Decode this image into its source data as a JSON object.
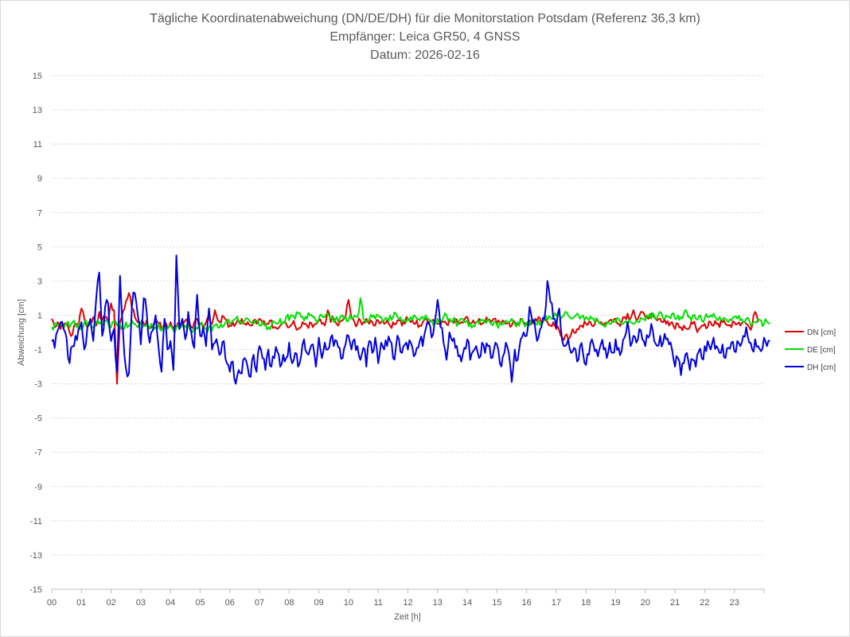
{
  "chart_data": {
    "type": "line",
    "title": [
      "Tägliche Koordinatenabweichung (DN/DE/DH) für die Monitorstation Potsdam (Referenz 36,3 km)",
      "Empfänger: Leica GR50, 4 GNSS",
      "Datum: 2026-02-16"
    ],
    "xlabel": "Zeit [h]",
    "ylabel": "Abweichung [cm]",
    "xlim": [
      0,
      24
    ],
    "ylim": [
      -15,
      15
    ],
    "x_ticks": [
      "00",
      "01",
      "02",
      "03",
      "04",
      "05",
      "06",
      "07",
      "08",
      "09",
      "10",
      "11",
      "12",
      "13",
      "14",
      "15",
      "16",
      "17",
      "18",
      "19",
      "20",
      "21",
      "22",
      "23"
    ],
    "y_ticks": [
      15,
      13,
      11,
      9,
      7,
      5,
      3,
      1,
      -1,
      -3,
      -5,
      -7,
      -9,
      -11,
      -13,
      -15
    ],
    "grid": "horizontal dotted",
    "legend_position": "right",
    "sample_interval_h": 0.1,
    "series": [
      {
        "name": "DN [cm]",
        "color": "#e00000",
        "values": [
          0.8,
          0.3,
          0.6,
          0.2,
          0.4,
          0.5,
          0.0,
          -0.1,
          0.5,
          0.3,
          1.4,
          0.8,
          0.3,
          0.6,
          0.9,
          0.4,
          1.2,
          0.7,
          0.9,
          0.5,
          1.7,
          1.3,
          -3.0,
          0.6,
          1.2,
          1.8,
          2.3,
          1.4,
          0.9,
          0.6,
          0.6,
          0.5,
          0.7,
          0.3,
          0.4,
          0.8,
          0.5,
          0.2,
          0.5,
          0.3,
          0.6,
          0.2,
          0.3,
          0.5,
          0.4,
          0.7,
          0.5,
          0.3,
          0.6,
          0.8,
          0.5,
          0.3,
          0.6,
          0.9,
          0.5,
          1.3,
          0.7,
          0.6,
          0.9,
          0.7,
          0.4,
          0.6,
          0.5,
          0.7,
          0.8,
          0.5,
          0.6,
          0.4,
          0.7,
          0.5,
          0.8,
          0.6,
          0.4,
          0.5,
          0.7,
          0.3,
          0.2,
          0.4,
          0.6,
          0.5,
          0.3,
          0.5,
          0.4,
          0.2,
          0.3,
          0.5,
          0.4,
          0.6,
          0.3,
          0.5,
          0.7,
          0.5,
          0.4,
          1.3,
          0.6,
          0.8,
          0.5,
          0.6,
          0.7,
          0.9,
          1.9,
          0.8,
          0.6,
          0.5,
          0.7,
          0.6,
          0.8,
          0.5,
          0.6,
          0.4,
          0.7,
          0.6,
          0.5,
          0.7,
          0.4,
          0.6,
          0.5,
          0.7,
          0.4,
          0.5,
          0.8,
          0.6,
          0.5,
          0.7,
          0.4,
          0.6,
          0.8,
          0.5,
          0.7,
          0.6,
          0.5,
          0.4,
          0.6,
          0.5,
          0.7,
          0.6,
          0.8,
          0.5,
          0.6,
          0.7,
          0.9,
          0.5,
          0.7,
          0.6,
          0.8,
          0.5,
          0.6,
          0.7,
          0.6,
          0.8,
          0.5,
          0.6,
          0.7,
          0.5,
          0.6,
          0.4,
          0.6,
          0.5,
          0.8,
          0.6,
          0.5,
          0.7,
          0.6,
          0.8,
          0.9,
          0.5,
          0.7,
          0.6,
          0.4,
          0.6,
          0.2,
          0.1,
          -0.3,
          -0.2,
          -0.4,
          -0.1,
          0.0,
          0.2,
          0.4,
          0.3,
          0.5,
          0.6,
          0.4,
          0.5,
          0.7,
          0.6,
          0.4,
          0.5,
          0.7,
          0.6,
          0.8,
          0.5,
          0.6,
          0.9,
          1.1,
          0.8,
          1.3,
          0.7,
          1.0,
          1.2,
          0.9,
          0.8,
          1.1,
          0.9,
          0.7,
          0.8,
          0.6,
          0.5,
          0.4,
          0.6,
          0.2,
          0.5,
          0.3,
          0.4,
          0.2,
          0.3,
          0.5,
          0.3,
          0.2,
          0.4,
          0.5,
          0.3,
          0.6,
          0.4,
          0.5,
          0.3,
          0.6,
          0.5,
          0.4,
          0.3,
          0.6,
          0.5,
          0.4,
          0.6,
          0.5,
          0.3,
          0.4,
          1.2,
          0.6
        ],
        "profile": "steady"
      },
      {
        "name": "DE [cm]",
        "color": "#00e000",
        "values": [
          0.3,
          0.5,
          0.4,
          0.6,
          0.2,
          0.5,
          0.3,
          0.6,
          0.4,
          0.5,
          0.2,
          0.6,
          0.4,
          0.5,
          0.3,
          0.6,
          0.5,
          0.4,
          0.7,
          0.5,
          0.3,
          0.6,
          0.4,
          0.5,
          0.2,
          0.6,
          0.4,
          0.7,
          0.5,
          0.3,
          0.6,
          0.4,
          0.5,
          0.2,
          0.4,
          0.3,
          0.5,
          0.1,
          0.3,
          0.2,
          0.4,
          0.1,
          0.3,
          0.2,
          0.5,
          0.3,
          0.4,
          0.1,
          0.3,
          0.2,
          0.5,
          0.4,
          0.2,
          0.3,
          0.1,
          0.4,
          0.3,
          0.5,
          0.4,
          0.6,
          0.5,
          0.7,
          0.8,
          0.6,
          0.5,
          0.7,
          0.8,
          0.6,
          0.5,
          0.7,
          0.4,
          0.6,
          0.5,
          0.3,
          0.4,
          0.6,
          0.5,
          0.8,
          0.6,
          0.9,
          0.7,
          1.0,
          0.8,
          1.1,
          0.9,
          0.7,
          0.8,
          1.0,
          0.9,
          0.7,
          0.8,
          1.0,
          0.9,
          1.1,
          0.8,
          0.6,
          0.9,
          0.8,
          1.0,
          0.9,
          0.7,
          0.8,
          1.0,
          0.9,
          2.0,
          0.8,
          0.6,
          0.7,
          0.9,
          0.8,
          1.0,
          0.9,
          0.7,
          0.8,
          1.0,
          0.9,
          1.1,
          0.8,
          0.6,
          0.7,
          0.8,
          0.9,
          1.0,
          0.8,
          0.7,
          0.9,
          1.0,
          0.8,
          0.7,
          0.6,
          0.8,
          0.7,
          0.9,
          1.0,
          0.8,
          0.6,
          0.7,
          0.5,
          0.8,
          0.6,
          0.7,
          0.5,
          0.4,
          0.6,
          0.5,
          0.7,
          0.6,
          0.8,
          0.5,
          0.6,
          0.4,
          0.6,
          0.5,
          0.7,
          0.6,
          0.8,
          0.5,
          0.6,
          0.7,
          0.5,
          0.6,
          0.4,
          0.6,
          0.5,
          0.7,
          0.6,
          0.8,
          0.7,
          0.9,
          0.8,
          1.0,
          1.1,
          0.9,
          1.2,
          1.0,
          0.8,
          0.9,
          1.1,
          0.8,
          1.0,
          0.9,
          0.7,
          0.8,
          0.6,
          0.7,
          0.5,
          0.4,
          0.6,
          0.5,
          0.7,
          0.6,
          0.8,
          0.5,
          0.6,
          0.4,
          0.6,
          0.5,
          0.7,
          0.6,
          0.8,
          0.7,
          0.9,
          0.8,
          1.0,
          0.9,
          1.2,
          0.8,
          1.0,
          0.9,
          1.1,
          0.8,
          1.0,
          0.9,
          1.1,
          1.2,
          0.9,
          1.0,
          0.8,
          0.9,
          0.7,
          0.8,
          0.9,
          1.0,
          1.1,
          0.8,
          0.9,
          0.7,
          0.8,
          0.6,
          0.7,
          0.9,
          0.8,
          0.7,
          0.6,
          0.8,
          0.7,
          0.5,
          0.6,
          0.8,
          0.7,
          0.5,
          0.6,
          0.5
        ],
        "profile": "steady"
      },
      {
        "name": "DH [cm]",
        "color": "#0000e0",
        "values": [
          -0.5,
          -0.9,
          0.1,
          0.6,
          0.2,
          -0.3,
          -1.8,
          -0.8,
          -0.2,
          0.2,
          0.6,
          -1.0,
          0.3,
          0.8,
          -0.5,
          2.0,
          3.5,
          -0.2,
          1.5,
          1.7,
          -0.5,
          0.2,
          -2.3,
          3.3,
          0.1,
          -2.1,
          -2.4,
          1.5,
          2.3,
          1.0,
          -0.7,
          2.0,
          1.2,
          -0.6,
          0.1,
          1.0,
          -0.9,
          -2.3,
          0.8,
          -1.0,
          -0.5,
          -2.2,
          4.5,
          0.2,
          0.8,
          -0.4,
          1.2,
          0.0,
          -0.9,
          2.2,
          -0.2,
          0.3,
          -0.8,
          1.4,
          -1.0,
          -0.6,
          -0.8,
          -1.2,
          -0.5,
          -1.8,
          -2.3,
          -1.7,
          -3.0,
          -2.2,
          -2.4,
          -1.5,
          -2.0,
          -2.6,
          -1.3,
          -2.3,
          -0.8,
          -1.5,
          -2.2,
          -1.0,
          -2.0,
          -1.5,
          -1.1,
          -2.0,
          -1.3,
          -1.5,
          -0.6,
          -1.8,
          -1.2,
          -2.0,
          -1.4,
          -0.4,
          -1.2,
          -1.0,
          -0.7,
          -2.0,
          -0.3,
          -1.5,
          -0.6,
          -1.0,
          -0.3,
          -0.8,
          -0.5,
          -0.9,
          -1.5,
          -0.7,
          -0.2,
          -1.0,
          -0.4,
          -0.8,
          -1.6,
          -0.9,
          -2.0,
          -0.5,
          -1.2,
          -0.3,
          -1.8,
          -0.6,
          -1.0,
          -0.8,
          -0.5,
          -1.5,
          -0.8,
          -0.4,
          -1.2,
          -0.7,
          -1.0,
          -0.6,
          -1.4,
          -0.9,
          -0.5,
          -0.8,
          0.2,
          0.6,
          -0.3,
          0.6,
          1.9,
          0.3,
          -0.6,
          -1.6,
          0.0,
          -0.5,
          -0.9,
          -1.4,
          -1.7,
          -0.9,
          -0.4,
          -1.6,
          -1.1,
          -0.8,
          -1.5,
          -0.6,
          -1.2,
          -0.8,
          -1.5,
          -1.0,
          -0.7,
          -1.8,
          -1.4,
          -0.6,
          -1.2,
          -2.9,
          -1.0,
          -1.6,
          -0.4,
          0.0,
          -0.2,
          1.5,
          0.6,
          0.1,
          -0.3,
          0.3,
          0.8,
          3.0,
          1.8,
          0.8,
          0.3,
          1.4,
          -0.5,
          -0.8,
          -0.4,
          -1.2,
          -0.9,
          -1.7,
          -0.8,
          -1.2,
          -1.9,
          -1.3,
          -0.4,
          -1.1,
          -1.4,
          -0.7,
          -1.0,
          -1.5,
          -0.6,
          -1.2,
          -0.4,
          -0.9,
          -1.1,
          -0.3,
          0.6,
          -0.8,
          -0.2,
          -0.6,
          0.2,
          -0.4,
          -0.8,
          -0.3,
          0.5,
          -0.5,
          -0.8,
          -0.2,
          -0.6,
          -0.4,
          -0.7,
          -1.0,
          -2.0,
          -1.5,
          -2.5,
          -1.8,
          -1.2,
          -2.2,
          -1.6,
          -2.0,
          -1.1,
          -1.5,
          -0.8,
          -0.5,
          -1.0,
          -0.3,
          -0.8,
          -1.2,
          -0.7,
          -1.5,
          -0.9,
          -0.6,
          -1.1,
          -0.5,
          -0.8,
          -0.2,
          0.3,
          -0.6,
          -1.0,
          -0.4,
          -0.8,
          -1.1,
          -0.3,
          -0.8,
          -0.5
        ],
        "profile": "noisy"
      }
    ]
  }
}
